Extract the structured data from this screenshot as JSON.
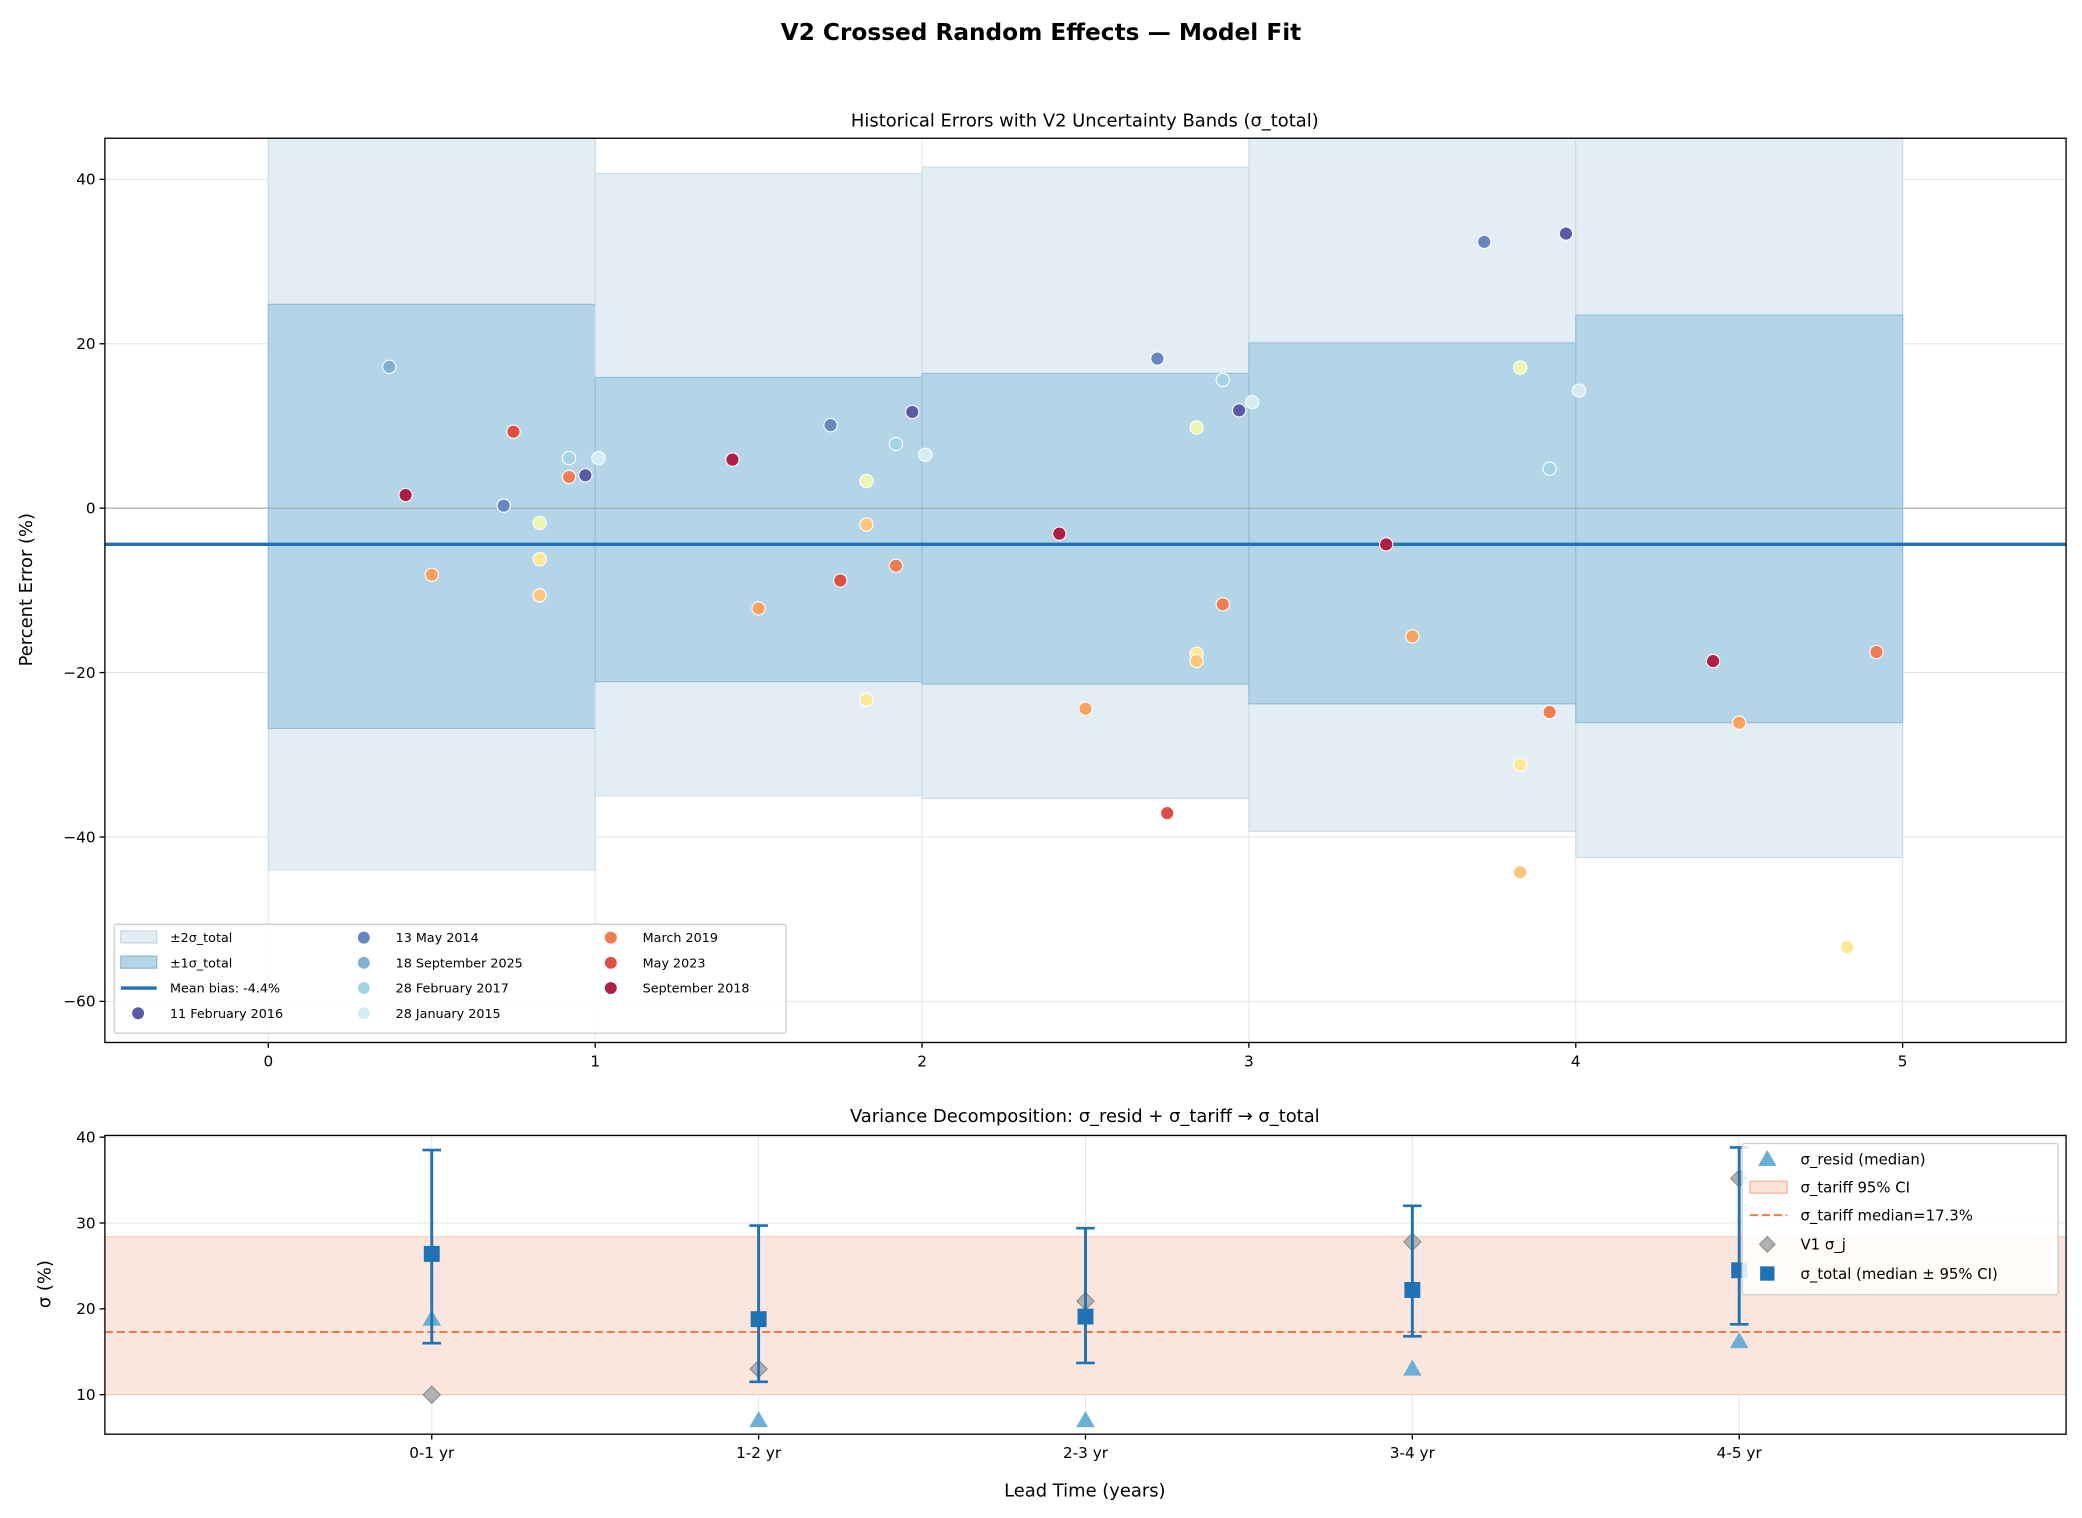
{
  "figure_title": "V2 Crossed Random Effects — Model Fit",
  "chart_data": [
    {
      "type": "scatter",
      "title": "Historical Errors with V2 Uncertainty Bands (σ_total)",
      "xlabel": "",
      "ylabel": "Percent Error (%)",
      "xlim": [
        -0.5,
        5.5
      ],
      "ylim": [
        -65,
        45
      ],
      "xticks": [
        0,
        1,
        2,
        3,
        4,
        5
      ],
      "yticks": [
        -60,
        -40,
        -20,
        0,
        20,
        40
      ],
      "grid": true,
      "legend_position": "lower-left",
      "mean_bias": -4.4,
      "mean_bias_label": "Mean bias: -4.4%",
      "band_labels": {
        "two_sigma": "±2σ_total",
        "one_sigma": "±1σ_total"
      },
      "bands": [
        {
          "x": [
            0,
            1
          ],
          "one_sigma": [
            -26.8,
            24.8
          ],
          "two_sigma": [
            -44.0,
            null
          ]
        },
        {
          "x": [
            1,
            2
          ],
          "one_sigma": [
            -21.1,
            15.9
          ],
          "two_sigma": [
            -35.0,
            40.7
          ]
        },
        {
          "x": [
            2,
            3
          ],
          "one_sigma": [
            -21.4,
            16.4
          ],
          "two_sigma": [
            -35.3,
            41.5
          ]
        },
        {
          "x": [
            3,
            4
          ],
          "one_sigma": [
            -23.8,
            20.1
          ],
          "two_sigma": [
            -39.3,
            null
          ]
        },
        {
          "x": [
            4,
            5
          ],
          "one_sigma": [
            -26.1,
            23.5
          ],
          "two_sigma": [
            -42.5,
            null
          ]
        }
      ],
      "colors": {
        "band2": "#e2edf4",
        "band1": "#b3d5e7",
        "band_edge": "#93bcd6",
        "mean_line": "#2171b5",
        "zero_line": "#aaaaaa"
      },
      "series": [
        {
          "name": "11 February 2016",
          "color": "#5a5aa8",
          "points": [
            [
              0.97,
              4.0
            ],
            [
              1.97,
              11.7
            ],
            [
              2.97,
              11.9
            ],
            [
              3.97,
              33.4
            ]
          ]
        },
        {
          "name": "13 May 2014",
          "color": "#6687c0",
          "points": [
            [
              0.72,
              0.3
            ],
            [
              1.72,
              10.1
            ],
            [
              2.72,
              18.2
            ],
            [
              3.72,
              32.4
            ]
          ]
        },
        {
          "name": "18 September 2025",
          "color": "#82b0d5",
          "points": [
            [
              0.37,
              17.2
            ]
          ]
        },
        {
          "name": "28 February 2017",
          "color": "#a6d4e6",
          "points": [
            [
              0.92,
              6.1
            ],
            [
              1.92,
              7.8
            ],
            [
              2.92,
              15.6
            ],
            [
              3.92,
              4.8
            ]
          ]
        },
        {
          "name": "28 January 2015",
          "color": "#d3edf3",
          "points": [
            [
              1.01,
              6.1
            ],
            [
              2.01,
              6.5
            ],
            [
              3.01,
              12.9
            ],
            [
              4.01,
              14.3
            ]
          ]
        },
        {
          "name": "March 2019",
          "color": "#f07c52",
          "points": [
            [
              0.92,
              3.8
            ],
            [
              1.92,
              -7.0
            ],
            [
              2.92,
              -11.7
            ],
            [
              3.92,
              -24.8
            ],
            [
              4.92,
              -17.5
            ]
          ]
        },
        {
          "name": "May 2023",
          "color": "#dd4f45",
          "points": [
            [
              0.75,
              9.3
            ],
            [
              1.75,
              -8.8
            ],
            [
              2.75,
              -37.1
            ]
          ]
        },
        {
          "name": "September 2018",
          "color": "#b01e44",
          "points": [
            [
              0.42,
              1.6
            ],
            [
              1.42,
              5.9
            ],
            [
              2.42,
              -3.1
            ],
            [
              3.42,
              -4.4
            ],
            [
              4.42,
              -18.6
            ]
          ]
        },
        {
          "color": "#f9a25e",
          "points": [
            [
              0.5,
              -8.1
            ],
            [
              1.5,
              -12.2
            ],
            [
              2.5,
              -24.4
            ],
            [
              3.5,
              -15.6
            ],
            [
              4.5,
              -26.1
            ]
          ]
        },
        {
          "color": "#ecf6b0",
          "points": [
            [
              0.83,
              -1.8
            ],
            [
              1.83,
              3.3
            ],
            [
              2.84,
              9.8
            ],
            [
              3.83,
              17.1
            ]
          ]
        },
        {
          "color": "#fee796",
          "points": [
            [
              0.83,
              -6.2
            ],
            [
              1.83,
              -23.3
            ],
            [
              2.84,
              -17.7
            ],
            [
              3.83,
              -31.2
            ],
            [
              4.83,
              -53.4
            ]
          ]
        },
        {
          "color": "#fdc67c",
          "points": [
            [
              0.83,
              -10.6
            ],
            [
              1.83,
              -2.0
            ],
            [
              2.84,
              -18.6
            ],
            [
              3.83,
              -44.3
            ]
          ]
        }
      ]
    },
    {
      "type": "errorbar",
      "title": "Variance Decomposition: σ_resid + σ_tariff → σ_total",
      "xlabel": "Lead Time (years)",
      "ylabel": "σ (%)",
      "categories": [
        "0-1 yr",
        "1-2 yr",
        "2-3 yr",
        "3-4 yr",
        "4-5 yr"
      ],
      "ylim": [
        5.4,
        40.2
      ],
      "yticks": [
        10,
        20,
        30,
        40
      ],
      "grid": true,
      "legend_position": "upper-right",
      "sigma_tariff": {
        "ci": [
          10.0,
          28.4
        ],
        "median": 17.3,
        "ci_label": "σ_tariff 95% CI",
        "median_label": "σ_tariff median=17.3%",
        "fill": "#fae3d9",
        "edge": "#f4b8a0",
        "line": "#ef7a45"
      },
      "series": [
        {
          "name": "σ_resid (median)",
          "marker": "triangle",
          "color": "#6baed6",
          "values": [
            18.8,
            7.0,
            7.0,
            13.0,
            16.2
          ]
        },
        {
          "name": "V1 σ_j",
          "marker": "diamond",
          "color": "#b0b0b0",
          "values": [
            10.0,
            13.0,
            20.9,
            27.8,
            35.2
          ]
        },
        {
          "name": "σ_total (median ± 95% CI)",
          "marker": "square",
          "color": "#2171b5",
          "values": [
            26.4,
            18.8,
            19.1,
            22.2,
            24.5
          ],
          "ci_low": [
            16.0,
            11.5,
            13.7,
            16.8,
            18.2
          ],
          "ci_high": [
            38.5,
            29.7,
            29.4,
            32.0,
            38.8
          ]
        }
      ]
    }
  ]
}
